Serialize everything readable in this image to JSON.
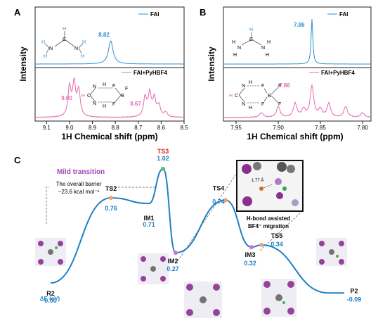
{
  "panels": {
    "A": {
      "letter": "A",
      "axis_label": "1H Chemical shift (ppm)",
      "y_label": "Intensity",
      "ticks": [
        "9.1",
        "9.0",
        "8.9",
        "8.8",
        "8.7",
        "8.6",
        "8.5"
      ]
    },
    "B": {
      "letter": "B",
      "axis_label": "1H Chemical shift (ppm)",
      "y_label": "Intensity",
      "ticks": [
        "7.95",
        "7.90",
        "7.85",
        "7.80"
      ]
    },
    "C": {
      "letter": "C"
    }
  },
  "legends": {
    "a_top": "FAI",
    "a_bottom": "FAI+PyHBF4",
    "b_top": "FAI",
    "b_bottom": "FAI+PyHBF4"
  },
  "peak_labels": {
    "a_fai": "8.82",
    "a_mix1": "9.00",
    "a_mix2": "8.67",
    "b_fai": "7.86",
    "b_mix": "7.86"
  },
  "annotations": {
    "mild_transition": "Mild transition",
    "barrier_line1": "The overall barrier",
    "barrier_line2": "~23.6 kcal mol⁻¹",
    "hbond_line1": "H-bond assisted",
    "hbond_line2": "BF4⁻ migration",
    "bond_length": "1.77 Å",
    "delta_e": "ΔE (eV)"
  },
  "colors": {
    "blue": "#2a8fd6",
    "pink": "#e26cb0",
    "profile": "#1f7fc4",
    "red": "#e0202a",
    "purple": "#a347b8"
  },
  "chart_data": [
    {
      "type": "line",
      "title": "",
      "xlabel": "1H Chemical shift (ppm)",
      "ylabel": "Intensity",
      "xlim": [
        9.15,
        8.5
      ],
      "x_reversed": true,
      "series": [
        {
          "name": "FAI",
          "peaks": [
            8.82
          ]
        },
        {
          "name": "FAI+PyHBF4",
          "peaks": [
            9.0,
            8.98,
            8.96,
            8.67,
            8.65,
            8.63,
            8.61
          ]
        }
      ]
    },
    {
      "type": "line",
      "title": "",
      "xlabel": "1H Chemical shift (ppm)",
      "ylabel": "Intensity",
      "xlim": [
        7.965,
        7.79
      ],
      "x_reversed": true,
      "series": [
        {
          "name": "FAI",
          "peaks": [
            7.86
          ]
        },
        {
          "name": "FAI+PyHBF4",
          "peaks": [
            7.86,
            7.88,
            7.84,
            7.9,
            7.82,
            7.92,
            7.8
          ]
        }
      ]
    },
    {
      "type": "line",
      "title": "",
      "ylabel": "ΔE (eV)",
      "states": [
        {
          "label": "R2",
          "energy": "0.00",
          "value": 0.0
        },
        {
          "label": "TS2",
          "energy": "0.76",
          "value": 0.76
        },
        {
          "label": "IM1",
          "energy": "0.71",
          "value": 0.71
        },
        {
          "label": "TS3",
          "energy": "1.02",
          "value": 1.02
        },
        {
          "label": "IM2",
          "energy": "0.27",
          "value": 0.27
        },
        {
          "label": "TS4",
          "energy": "0.74",
          "value": 0.74
        },
        {
          "label": "IM3",
          "energy": "0.32",
          "value": 0.32
        },
        {
          "label": "TS5",
          "energy": "0.34",
          "value": 0.34
        },
        {
          "label": "P2",
          "energy": "-0.09",
          "value": -0.09
        }
      ]
    }
  ]
}
